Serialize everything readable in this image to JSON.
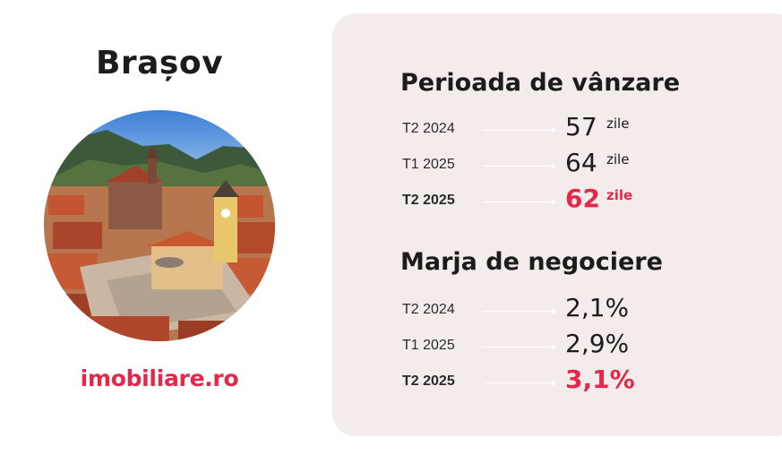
{
  "city": "Brașov",
  "brand": "imobiliare.ro",
  "colors": {
    "accent": "#e6274c",
    "panel_bg": "#f3eceb",
    "text": "#1c1c1c"
  },
  "sale_period": {
    "title": "Perioada de vânzare",
    "rows": [
      {
        "period": "T2 2024",
        "value": "57",
        "unit": "zile"
      },
      {
        "period": "T1 2025",
        "value": "64",
        "unit": "zile"
      },
      {
        "period": "T2 2025",
        "value": "62",
        "unit": "zile"
      }
    ]
  },
  "negotiation_margin": {
    "title": "Marja de negociere",
    "rows": [
      {
        "period": "T2 2024",
        "value": "2,1%"
      },
      {
        "period": "T1 2025",
        "value": "2,9%"
      },
      {
        "period": "T2 2025",
        "value": "3,1%"
      }
    ]
  }
}
